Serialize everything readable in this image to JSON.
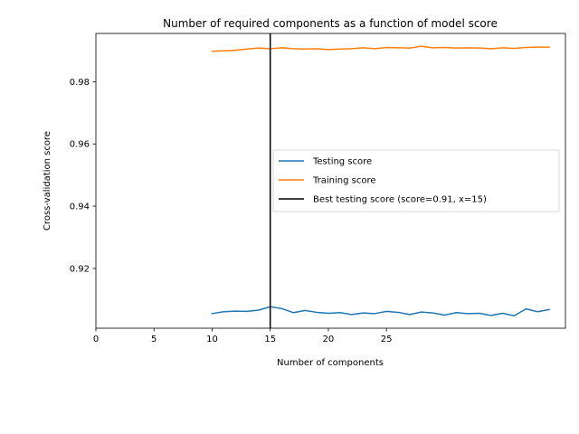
{
  "chart_data": {
    "type": "line",
    "title": "Number of required components as a function of model score",
    "xlabel": "Number of components",
    "ylabel": "Cross-validation score",
    "xlim": [
      0,
      40.4
    ],
    "ylim": [
      0.9008,
      0.9955
    ],
    "x_ticks": [
      0,
      5,
      10,
      15,
      20,
      25
    ],
    "y_ticks": [
      0.92,
      0.94,
      0.96,
      0.98
    ],
    "x_tick_labels": [
      "0",
      "5",
      "10",
      "15",
      "20",
      "25"
    ],
    "y_tick_labels": [
      "0.92",
      "0.94",
      "0.96",
      "0.98"
    ],
    "grid": false,
    "legend_position": "center-right",
    "x": [
      10,
      11,
      12,
      13,
      14,
      15,
      16,
      17,
      18,
      19,
      20,
      21,
      22,
      23,
      24,
      25,
      26,
      27,
      28,
      29,
      30,
      31,
      32,
      33,
      34,
      35,
      36,
      37,
      38,
      39
    ],
    "series": [
      {
        "name": "Testing score",
        "color": "#1f77b4",
        "values": [
          0.9055,
          0.9061,
          0.9063,
          0.9062,
          0.9066,
          0.9077,
          0.9071,
          0.9058,
          0.9065,
          0.9059,
          0.9056,
          0.9058,
          0.9052,
          0.9057,
          0.9055,
          0.9062,
          0.9059,
          0.9052,
          0.906,
          0.9057,
          0.905,
          0.9058,
          0.9055,
          0.9056,
          0.9049,
          0.9056,
          0.9048,
          0.907,
          0.9061,
          0.9068
        ]
      },
      {
        "name": "Training score",
        "color": "#ff7f0e",
        "values": [
          0.9898,
          0.9899,
          0.9901,
          0.9905,
          0.9908,
          0.9906,
          0.9909,
          0.9906,
          0.9905,
          0.9906,
          0.9903,
          0.9905,
          0.9906,
          0.9909,
          0.9906,
          0.991,
          0.9909,
          0.9908,
          0.9914,
          0.9909,
          0.991,
          0.9908,
          0.9909,
          0.9908,
          0.9906,
          0.9909,
          0.9907,
          0.991,
          0.9911,
          0.9911
        ]
      }
    ],
    "vline": {
      "name": "Best testing score (score=0.91, x=15)",
      "x": 15,
      "color": "#000000"
    }
  }
}
